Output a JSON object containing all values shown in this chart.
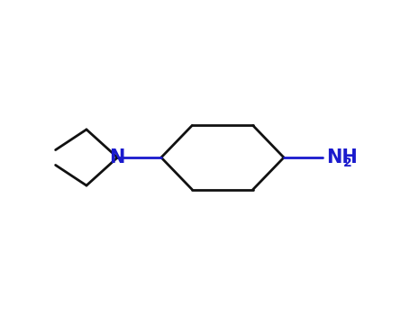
{
  "background_color": "#ffffff",
  "bond_color": "#111111",
  "heteroatom_color": "#1a1acd",
  "line_width": 2.0,
  "figsize": [
    4.55,
    3.5
  ],
  "dpi": 100,
  "N_fontsize": 15,
  "NH2_fontsize": 15,
  "sub_fontsize": 10,
  "xlim": [
    -3.8,
    3.2
  ],
  "ylim": [
    -1.8,
    1.8
  ]
}
